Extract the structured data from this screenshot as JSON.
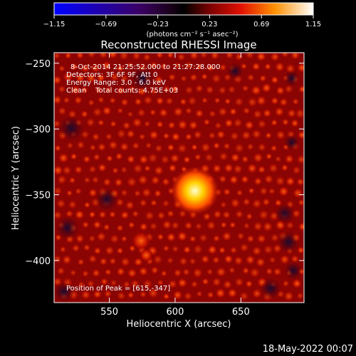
{
  "colorbar": {
    "ticks": [
      "-1.15",
      "-0.69",
      "-0.23",
      "0.23",
      "0.69",
      "1.15"
    ],
    "vmin": -1.15,
    "vmax": 1.15,
    "unit_label": "(photons cm⁻² s⁻¹ asec⁻²)"
  },
  "chart_data": {
    "type": "heatmap",
    "title": "Reconstructed RHESSI Image",
    "xlabel": "Heliocentric X (arcsec)",
    "ylabel": "Heliocentric Y (arcsec)",
    "xlim": [
      508,
      698
    ],
    "ylim": [
      -432,
      -242
    ],
    "x_ticks": [
      550,
      600,
      650
    ],
    "y_ticks": [
      -250,
      -300,
      -350,
      -400
    ],
    "peak": {
      "x": 615,
      "y": -347
    },
    "secondary_sources": [
      {
        "x": 574,
        "y": -385
      },
      {
        "x": 578,
        "y": -396
      }
    ],
    "info_lines": [
      "8-Oct-2014 21:25:52.000 to 21:27:28.000",
      "Detectors: 3F 6F 9F, Att 0",
      "Energy Range: 3.0 - 6.0 keV",
      "Clean    Total counts: 4.75E+03"
    ],
    "peak_label": "Position of Peak = [615,-347]"
  },
  "footer_date": "18-May-2022 00:07"
}
